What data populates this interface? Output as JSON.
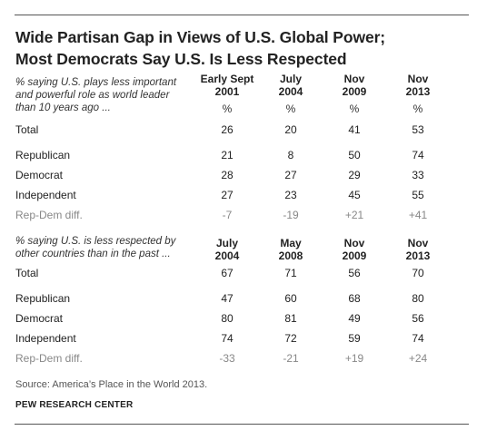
{
  "title_line1": "Wide Partisan Gap in Views of U.S. Global Power;",
  "title_line2": "Most Democrats Say U.S. Is Less Respected",
  "chart_data": [
    {
      "type": "table",
      "note": [
        "% saying U.S. plays less important",
        "and powerful role as world leader",
        "than 10 years ago ..."
      ],
      "columns": [
        {
          "line1": "Early Sept",
          "line2": "2001",
          "unit": "%"
        },
        {
          "line1": "July",
          "line2": "2004",
          "unit": "%"
        },
        {
          "line1": "Nov",
          "line2": "2009",
          "unit": "%"
        },
        {
          "line1": "Nov",
          "line2": "2013",
          "unit": "%"
        }
      ],
      "rows": [
        {
          "label": "Total",
          "values": [
            "26",
            "20",
            "41",
            "53"
          ]
        },
        {
          "label": "Republican",
          "values": [
            "21",
            "8",
            "50",
            "74"
          ]
        },
        {
          "label": "Democrat",
          "values": [
            "28",
            "27",
            "29",
            "33"
          ]
        },
        {
          "label": "Independent",
          "values": [
            "27",
            "23",
            "45",
            "55"
          ]
        },
        {
          "label": "Rep-Dem diff.",
          "values": [
            "-7",
            "-19",
            "+21",
            "+41"
          ]
        }
      ]
    },
    {
      "type": "table",
      "note": [
        "% saying U.S. is less respected by",
        "other countries than in the past ..."
      ],
      "columns": [
        {
          "line1": "July",
          "line2": "2004"
        },
        {
          "line1": "May",
          "line2": "2008"
        },
        {
          "line1": "Nov",
          "line2": "2009"
        },
        {
          "line1": "Nov",
          "line2": "2013"
        }
      ],
      "rows": [
        {
          "label": "Total",
          "values": [
            "67",
            "71",
            "56",
            "70"
          ]
        },
        {
          "label": "Republican",
          "values": [
            "47",
            "60",
            "68",
            "80"
          ]
        },
        {
          "label": "Democrat",
          "values": [
            "80",
            "81",
            "49",
            "56"
          ]
        },
        {
          "label": "Independent",
          "values": [
            "74",
            "72",
            "59",
            "74"
          ]
        },
        {
          "label": "Rep-Dem diff.",
          "values": [
            "-33",
            "-21",
            "+19",
            "+24"
          ]
        }
      ]
    }
  ],
  "source": "Source: America’s Place in the World 2013.",
  "credit": "PEW RESEARCH CENTER"
}
